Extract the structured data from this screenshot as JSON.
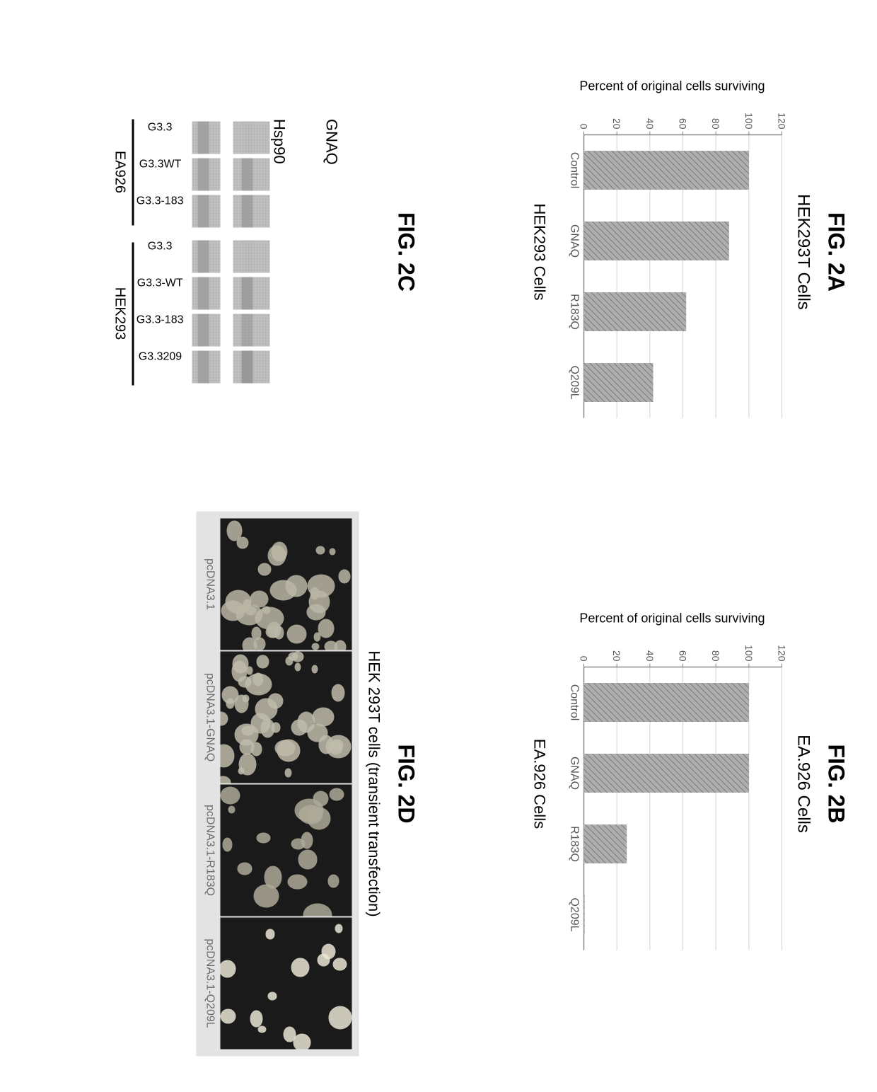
{
  "figA": {
    "label": "FIG. 2A",
    "title": "HEK293T Cells",
    "ylabel": "Percent of original cells surviving",
    "xlabel": "HEK293 Cells",
    "ylim": [
      0,
      120
    ],
    "ytick_step": 20,
    "categories": [
      "Control",
      "GNAQ",
      "R183Q",
      "Q209L"
    ],
    "values": [
      100,
      88,
      62,
      42
    ],
    "bar_color": "#aeaeae",
    "grid_color": "#d4d4d4",
    "axis_color": "#888888",
    "background_color": "#ffffff",
    "label_fontsize": 14,
    "bar_width": 0.55,
    "hatch": "diagonal"
  },
  "figB": {
    "label": "FIG. 2B",
    "title": "EA.926 Cells",
    "ylabel": "Percent of original cells surviving",
    "xlabel": "EA.926 Cells",
    "ylim": [
      0,
      120
    ],
    "ytick_step": 20,
    "categories": [
      "Control",
      "GNAQ",
      "R183Q",
      "Q209L"
    ],
    "values": [
      100,
      100,
      26,
      0.5
    ],
    "bar_color": "#aeaeae",
    "grid_color": "#d4d4d4",
    "axis_color": "#888888",
    "background_color": "#ffffff",
    "label_fontsize": 14,
    "bar_width": 0.55,
    "hatch": "diagonal"
  },
  "figC": {
    "label": "FIG. 2C",
    "row_labels": [
      "GNAQ",
      "Hsp90"
    ],
    "groups": [
      {
        "name": "EA926",
        "lanes": [
          "G3.3",
          "G3.3WT",
          "G3.3-183"
        ]
      },
      {
        "name": "HEK293",
        "lanes": [
          "G3.3",
          "G3.3-WT",
          "G3.3-183",
          "G3.3209"
        ]
      }
    ],
    "lane_bg": "#bfbfbf",
    "band_color": "#8a8a8a",
    "gnaq_intensity": [
      0.05,
      0.55,
      0.55,
      0.05,
      0.6,
      0.45,
      0.7
    ],
    "hsp90_intensity": [
      0.5,
      0.5,
      0.5,
      0.5,
      0.5,
      0.5,
      0.5
    ]
  },
  "figD": {
    "label": "FIG. 2D",
    "title": "HEK 293T cells (transient transfection)",
    "panels": [
      "pcDNA3.1",
      "pcDNA3.1-GNAQ",
      "pcDNA3.1-R183Q",
      "pcDNA3.1-Q209L"
    ],
    "cell_counts": [
      34,
      42,
      18,
      14
    ],
    "cell_brightness": [
      0.55,
      0.6,
      0.45,
      0.95
    ],
    "bg_color": "#1a1a1a",
    "frame_bg": "#e3e3e3",
    "label_color": "#6b6b6b"
  }
}
